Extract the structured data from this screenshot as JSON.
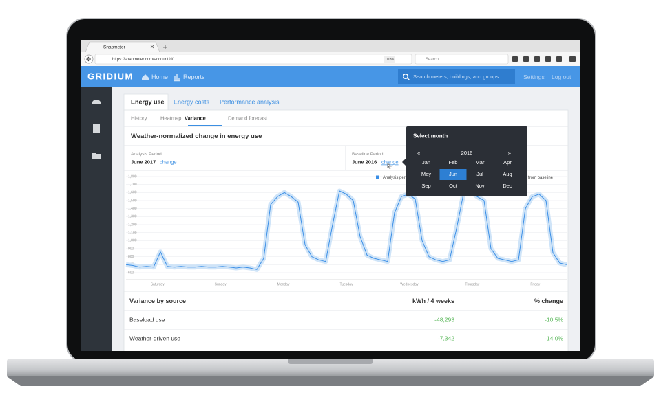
{
  "browser": {
    "tab_title": "Snapmeter",
    "url": "https://snapmeter.com/account/d/",
    "zoom": "110%",
    "search_placeholder": "Search"
  },
  "navbar": {
    "logo": "GRIDIUM",
    "links": [
      "Home",
      "Reports"
    ],
    "search_placeholder": "Search meters, buildings, and groups...",
    "right_links": [
      "Settings",
      "Log out"
    ]
  },
  "tabs": [
    "Energy use",
    "Energy costs",
    "Performance analysis"
  ],
  "subtabs": [
    "History",
    "Heatmap",
    "Variance",
    "Demand forecast"
  ],
  "section_title": "Weather-normalized change in energy use",
  "analysis_period": {
    "label": "Analysis Period",
    "value": "June 2017",
    "action": "change"
  },
  "baseline_period": {
    "label": "Baseline Period",
    "value": "June 2016",
    "action": "change"
  },
  "chart_data": {
    "type": "line",
    "xtick_labels": [
      "Saturday",
      "Sunday",
      "Monday",
      "Tuesday",
      "Wednesday",
      "Thursday",
      "Friday"
    ],
    "values": [
      700,
      690,
      670,
      680,
      670,
      860,
      680,
      670,
      680,
      670,
      670,
      680,
      670,
      670,
      680,
      670,
      660,
      670,
      660,
      640,
      780,
      1450,
      1550,
      1600,
      1550,
      1480,
      950,
      800,
      760,
      740,
      1200,
      1620,
      1580,
      1500,
      1050,
      820,
      780,
      760,
      740,
      1350,
      1550,
      1580,
      1520,
      1000,
      800,
      760,
      740,
      760,
      1150,
      1580,
      1620,
      1550,
      1500,
      900,
      780,
      760,
      740,
      760,
      1400,
      1550,
      1580,
      1500,
      850,
      720,
      700
    ],
    "color": "#3a8ee6",
    "ylim": [
      600,
      1800
    ],
    "yticks": [
      {
        "value": 1800,
        "label": "1,800"
      },
      {
        "value": 1700,
        "label": "1,700"
      },
      {
        "value": 1600,
        "label": "1,600"
      },
      {
        "value": 1500,
        "label": "1,500"
      },
      {
        "value": 1400,
        "label": "1,400"
      },
      {
        "value": 1300,
        "label": "1,300"
      },
      {
        "value": 1200,
        "label": "1,200"
      },
      {
        "value": 1100,
        "label": "1,100"
      },
      {
        "value": 1000,
        "label": "1,000"
      },
      900,
      800,
      700,
      600
    ],
    "legend": [
      "Analysis period",
      "% change from baseline"
    ],
    "grid": true
  },
  "month_picker": {
    "title": "Select month",
    "prev": "«",
    "year": "2016",
    "next": "»",
    "months": [
      "Jan",
      "Feb",
      "Mar",
      "Apr",
      "May",
      "Jun",
      "Jul",
      "Aug",
      "Sep",
      "Oct",
      "Nov",
      "Dec"
    ],
    "selected": 5
  },
  "table": {
    "headers": [
      "Variance by source",
      "kWh / 4 weeks",
      "% change"
    ],
    "rows": [
      [
        "Baseload use",
        "-48,293",
        "-10.5%"
      ],
      [
        "Weather-driven use",
        "-7,342",
        "-14.0%"
      ]
    ]
  }
}
